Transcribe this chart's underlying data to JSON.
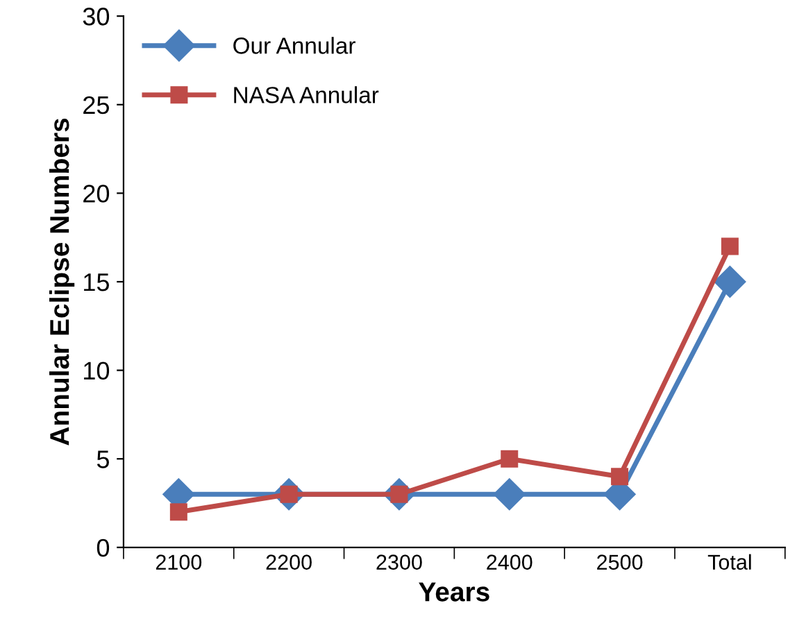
{
  "chart_data": {
    "type": "line",
    "xlabel": "Years",
    "ylabel": "Annular Eclipse Numbers",
    "categories": [
      "2100",
      "2200",
      "2300",
      "2400",
      "2500",
      "Total"
    ],
    "series": [
      {
        "name": "Our Annular",
        "color": "#4a7ebb",
        "marker": "diamond",
        "values": [
          3,
          3,
          3,
          3,
          3,
          15
        ]
      },
      {
        "name": "NASA Annular",
        "color": "#be4b48",
        "marker": "square",
        "values": [
          2,
          3,
          3,
          5,
          4,
          17
        ]
      }
    ],
    "ylim": [
      0,
      30
    ],
    "yticks": [
      0,
      5,
      10,
      15,
      20,
      25,
      30
    ],
    "grid": false,
    "legend": "top left",
    "line_style": "solid"
  }
}
